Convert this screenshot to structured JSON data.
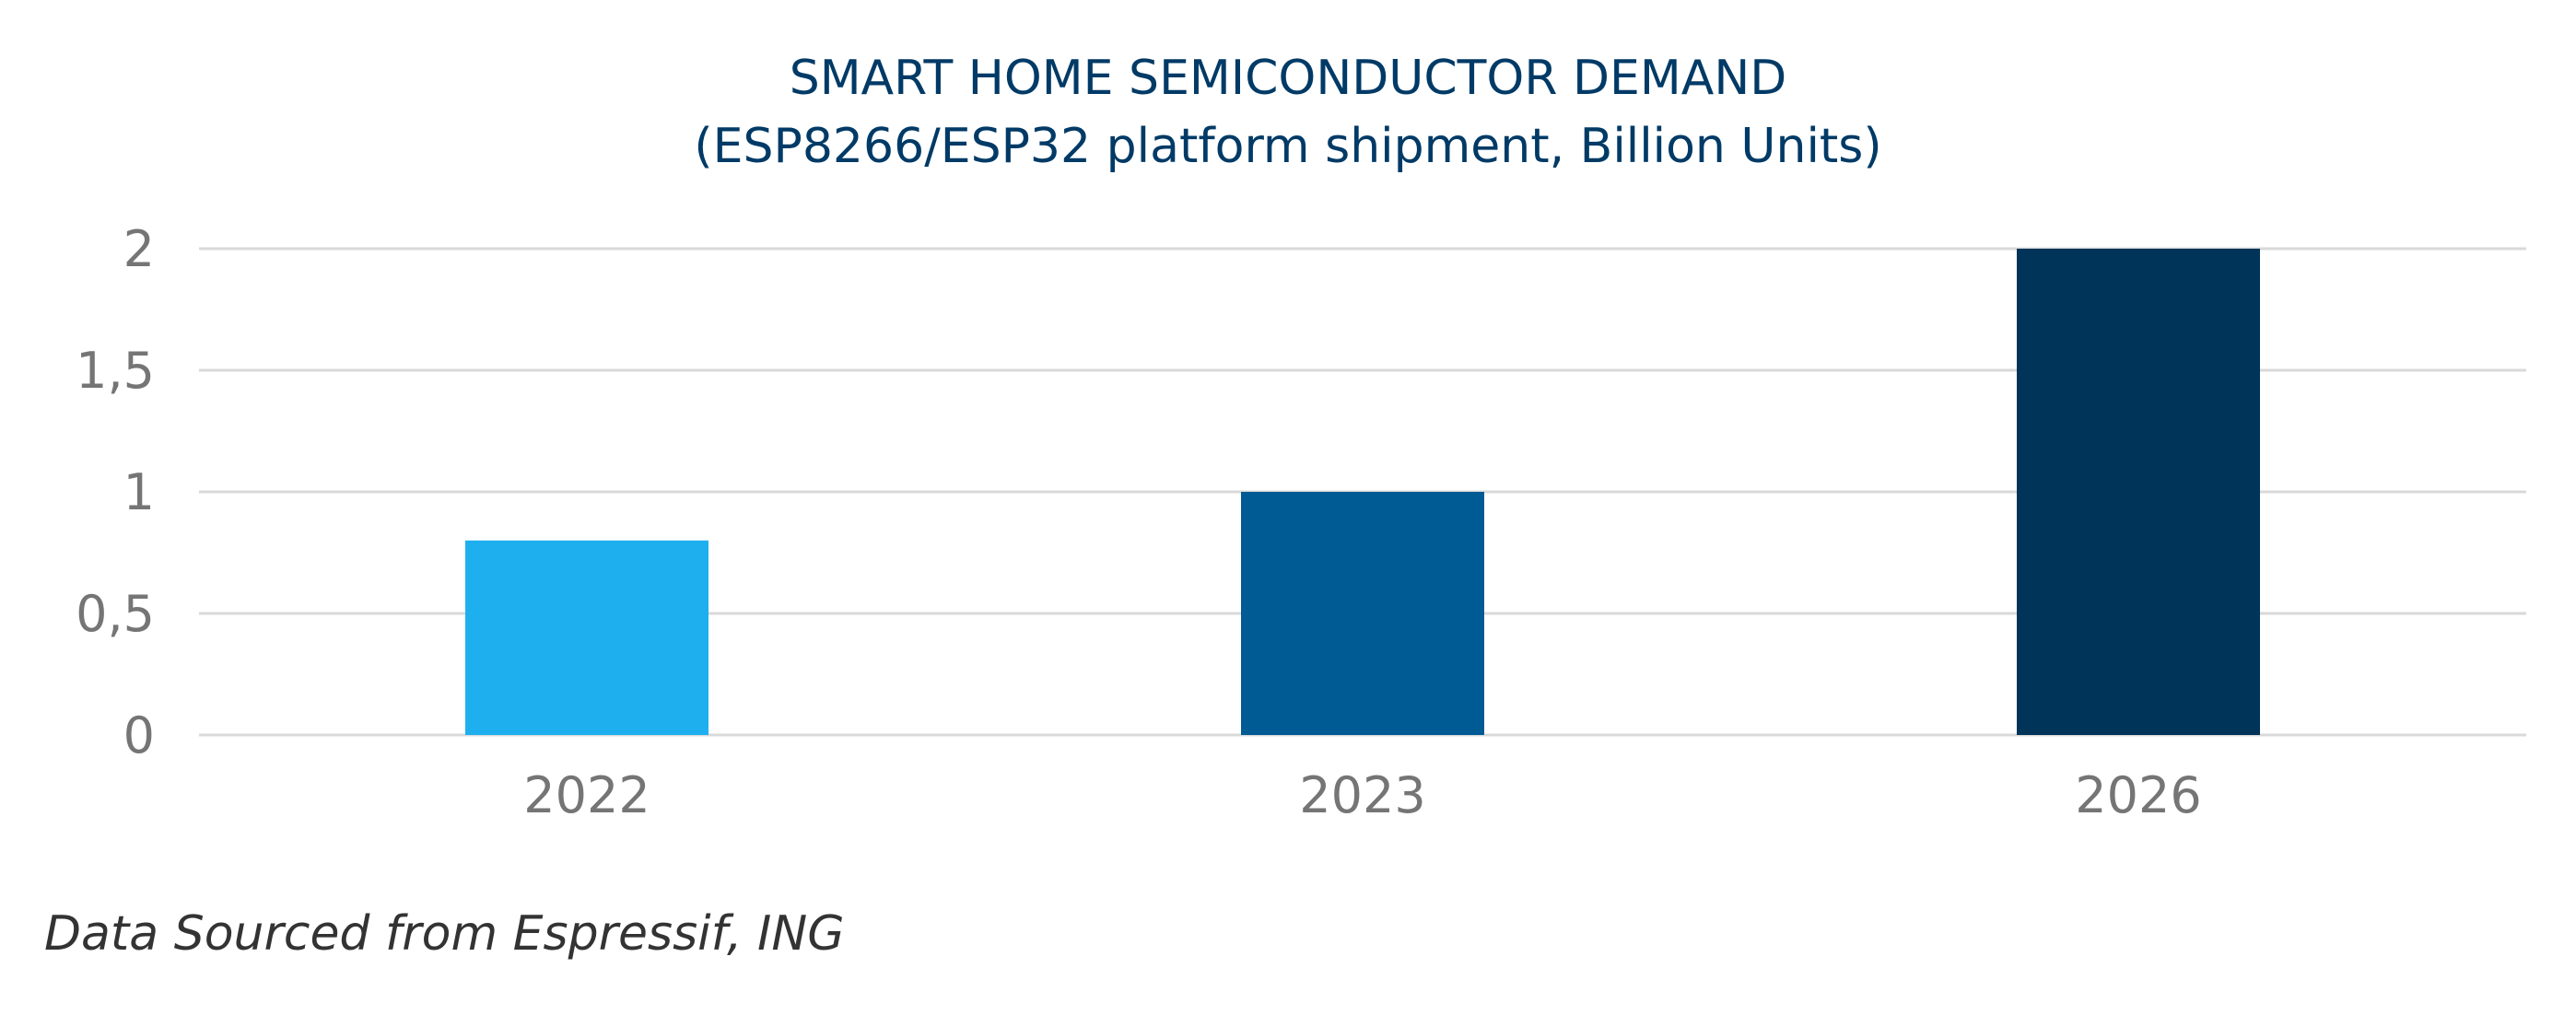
{
  "chart_data": {
    "type": "bar",
    "title": "SMART HOME SEMICONDUCTOR DEMAND",
    "subtitle": "(ESP8266/ESP32 platform shipment, Billion Units)",
    "categories": [
      "2022",
      "2023",
      "2026"
    ],
    "values": [
      0.8,
      1,
      2
    ],
    "bar_colors": [
      "#1eafef",
      "#005a94",
      "#003459"
    ],
    "ylim": [
      0,
      2
    ],
    "yticks": [
      0,
      0.5,
      1,
      1.5,
      2
    ],
    "ytick_labels": [
      "0",
      "0,5",
      "1",
      "1,5",
      "2"
    ],
    "grid": true,
    "legend": "none"
  },
  "source_note": "Data Sourced from Espressif, ING"
}
